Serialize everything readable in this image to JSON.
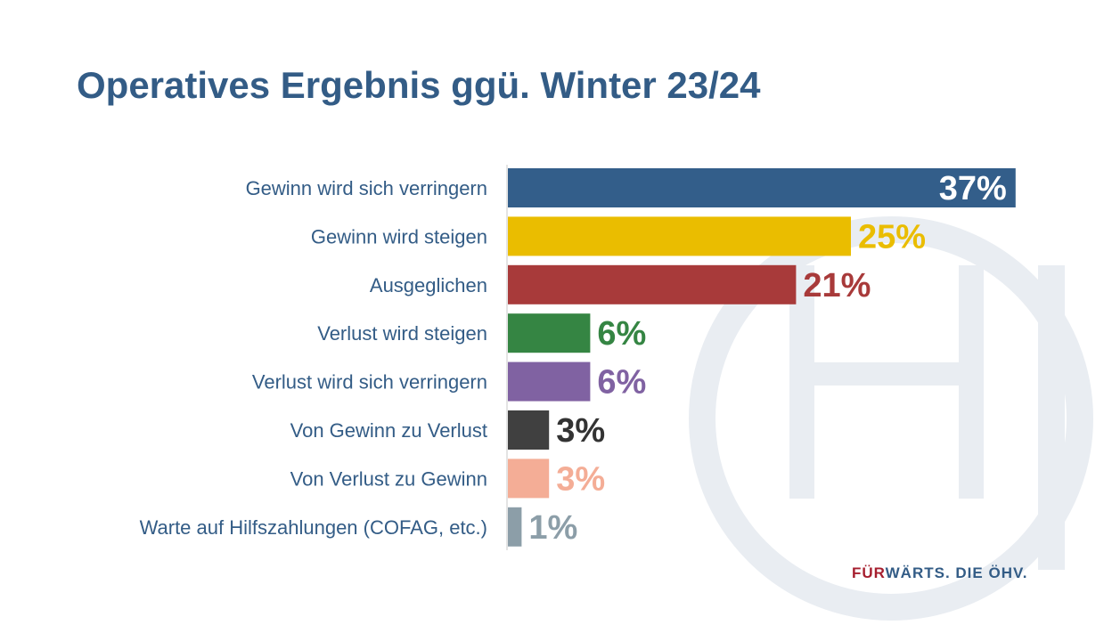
{
  "title": "Operatives Ergebnis ggü. Winter 23/24",
  "footer": {
    "part1": "FÜR",
    "part2": "WÄRTS. DIE ÖHV."
  },
  "watermark": {
    "text": "ÖHV",
    "color": "#e9edf2"
  },
  "chart_data": {
    "type": "bar",
    "orientation": "horizontal",
    "title": "Operatives Ergebnis ggü. Winter 23/24",
    "categories": [
      "Gewinn wird sich verringern",
      "Gewinn wird steigen",
      "Ausgeglichen",
      "Verlust wird steigen",
      "Verlust wird sich verringern",
      "Von Gewinn zu Verlust",
      "Von Verlust zu Gewinn",
      "Warte auf Hilfszahlungen (COFAG, etc.)"
    ],
    "values": [
      37,
      25,
      21,
      6,
      6,
      3,
      3,
      1
    ],
    "value_labels": [
      "37%",
      "25%",
      "21%",
      "6%",
      "6%",
      "3%",
      "3%",
      "1%"
    ],
    "colors": [
      "#335e8a",
      "#eabd00",
      "#a83a3a",
      "#358543",
      "#8062a2",
      "#404040",
      "#f4ad96",
      "#8c9ea8"
    ],
    "label_colors": [
      "#ffffff",
      "#eabd00",
      "#a83a3a",
      "#358543",
      "#8062a2",
      "#333333",
      "#f4ad96",
      "#8c9ea8"
    ],
    "unit": "%",
    "grid": false,
    "legend": "none",
    "xlabel": "",
    "ylabel": ""
  }
}
